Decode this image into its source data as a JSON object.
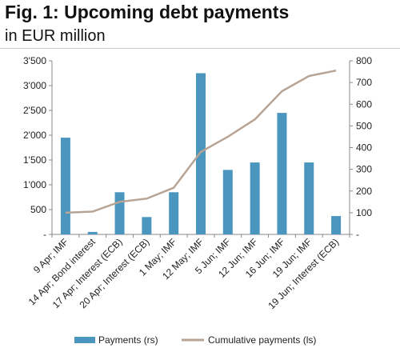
{
  "title": "Fig. 1: Upcoming debt payments",
  "subtitle": "in EUR million",
  "chart_data": {
    "type": "bar",
    "categories": [
      "9 Apr; IMF",
      "14 Apr; Bond interest",
      "17 Apr; Interest (ECB)",
      "20 Apr; Interest (ECB)",
      "1 May; IMF",
      "12 May; IMF",
      "5 Jun; IMF",
      "12 Jun; IMF",
      "16 Jun; IMF",
      "19 Jun; IMF",
      "19 Jun; Interest (ECB)"
    ],
    "series": [
      {
        "name": "Payments (rs)",
        "type": "bar",
        "axis": "left",
        "color": "#4a96bf",
        "values": [
          1950,
          50,
          850,
          350,
          850,
          3250,
          1300,
          1450,
          2450,
          1450,
          370
        ]
      },
      {
        "name": "Cumulative payments (ls)",
        "type": "line",
        "axis": "right",
        "color": "#b8a494",
        "values": [
          100,
          105,
          150,
          165,
          215,
          380,
          450,
          530,
          660,
          730,
          755
        ]
      }
    ],
    "left_axis": {
      "min": 0,
      "max": 3500,
      "ticks": [
        "-",
        "500",
        "1'000",
        "1'500",
        "2'000",
        "2'500",
        "3'000",
        "3'500"
      ]
    },
    "right_axis": {
      "min": 0,
      "max": 800,
      "ticks": [
        "-",
        "100",
        "200",
        "300",
        "400",
        "500",
        "600",
        "700",
        "800"
      ]
    },
    "legend_position": "bottom",
    "grid": false
  }
}
